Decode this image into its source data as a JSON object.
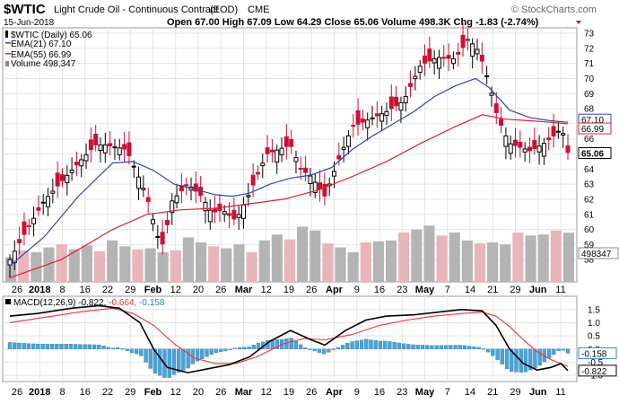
{
  "header": {
    "symbol": "$WTIC",
    "name": "Light Crude Oil - Continuous Contract",
    "exchange": "CME",
    "source": "(EOD)",
    "date": "15-Jun-2018",
    "quote": "Open 67.00  High 67.09  Low 64.29  Close 65.06  Volume 498.3K  Chg -1.83 (-2.74%)",
    "watermark": "© StockCharts.com"
  },
  "colors": {
    "up": "#000000",
    "down": "#cc1133",
    "ema21": "#3344aa",
    "ema55": "#dd2233",
    "volume": "#b4b4b4",
    "volume_down": "#e8b5bb",
    "macd": "#000000",
    "signal": "#ee3333",
    "histogram": "#4aa3d8",
    "grid": "#e4e4e4",
    "badge": "#3344aa"
  },
  "price_panel": {
    "legend": [
      "$WTIC (Daily) 65.06",
      "EMA(21) 67.10",
      "EMA(55) 66.99",
      "Volume 498,347"
    ],
    "price_badges": [
      "67.10",
      "66.99",
      "65.06"
    ],
    "volume_badge": "498347"
  },
  "macd_panel": {
    "legend_prefix": "MACD(12,26,9) -0.822, ",
    "legend_signal": "-0.664, ",
    "legend_hist": "-0.158",
    "badges": [
      "-0.158",
      "-0.822"
    ]
  },
  "x_axis_labels": [
    "26",
    "2018",
    "8",
    "16",
    "22",
    "29",
    "Feb",
    "12",
    "20",
    "26",
    "Mar",
    "12",
    "19",
    "26",
    "Apr",
    "9",
    "16",
    "23",
    "May",
    "7",
    "14",
    "21",
    "29",
    "Jun",
    "11"
  ],
  "chart_data": [
    {
      "type": "candlestick",
      "title": "$WTIC Light Crude Oil - Continuous Contract (EOD) CME",
      "y_range": [
        57,
        73
      ],
      "y_ticks": [
        58,
        59,
        60,
        61,
        62,
        63,
        64,
        65,
        66,
        67,
        68,
        69,
        70,
        71,
        72,
        73
      ],
      "x_range": [
        "2017-12-26",
        "2018-06-15"
      ],
      "series": [
        {
          "name": "$WTIC (Daily)",
          "style": "candles",
          "closes": [
            [
              0,
              58.0
            ],
            [
              4,
              59.6
            ],
            [
              10,
              61.9
            ],
            [
              20,
              64.4
            ],
            [
              25,
              65.6
            ],
            [
              28,
              65.6
            ],
            [
              34,
              65.3
            ],
            [
              37,
              63.8
            ],
            [
              40,
              62.2
            ],
            [
              43,
              59.6
            ],
            [
              45,
              58.9
            ],
            [
              47,
              61.8
            ],
            [
              52,
              63.0
            ],
            [
              56,
              62.2
            ],
            [
              59,
              61.1
            ],
            [
              62,
              61.3
            ],
            [
              66,
              60.6
            ],
            [
              70,
              62.4
            ],
            [
              75,
              65.0
            ],
            [
              82,
              65.6
            ],
            [
              85,
              64.0
            ],
            [
              88,
              63.5
            ],
            [
              92,
              62.2
            ],
            [
              96,
              64.6
            ],
            [
              100,
              66.8
            ],
            [
              106,
              67.4
            ],
            [
              110,
              67.8
            ],
            [
              115,
              68.5
            ],
            [
              120,
              70.9
            ],
            [
              125,
              71.4
            ],
            [
              130,
              71.3
            ],
            [
              134,
              72.6
            ],
            [
              137,
              71.8
            ],
            [
              140,
              69.7
            ],
            [
              142,
              67.8
            ],
            [
              144,
              66.6
            ],
            [
              146,
              65.7
            ],
            [
              152,
              65.2
            ],
            [
              156,
              65.7
            ],
            [
              160,
              66.4
            ],
            [
              161,
              66.9
            ],
            [
              163,
              65.1
            ]
          ]
        },
        {
          "name": "EMA(21)",
          "style": "line",
          "points": [
            [
              0,
              57.6
            ],
            [
              10,
              59.5
            ],
            [
              20,
              62.2
            ],
            [
              30,
              64.4
            ],
            [
              36,
              64.5
            ],
            [
              42,
              63.9
            ],
            [
              48,
              63.0
            ],
            [
              55,
              62.6
            ],
            [
              60,
              62.3
            ],
            [
              65,
              62.2
            ],
            [
              70,
              62.4
            ],
            [
              76,
              63.0
            ],
            [
              82,
              63.4
            ],
            [
              88,
              63.6
            ],
            [
              94,
              64.1
            ],
            [
              100,
              65.3
            ],
            [
              106,
              66.2
            ],
            [
              112,
              67.0
            ],
            [
              118,
              67.8
            ],
            [
              124,
              68.8
            ],
            [
              130,
              69.5
            ],
            [
              136,
              70.0
            ],
            [
              140,
              69.4
            ],
            [
              146,
              67.9
            ],
            [
              152,
              67.4
            ],
            [
              158,
              67.2
            ],
            [
              163,
              67.1
            ]
          ]
        },
        {
          "name": "EMA(55)",
          "style": "line",
          "points": [
            [
              0,
              56.8
            ],
            [
              15,
              58.0
            ],
            [
              30,
              60.0
            ],
            [
              40,
              61.0
            ],
            [
              50,
              61.3
            ],
            [
              60,
              61.4
            ],
            [
              70,
              61.7
            ],
            [
              80,
              62.0
            ],
            [
              90,
              62.6
            ],
            [
              100,
              63.5
            ],
            [
              110,
              64.5
            ],
            [
              120,
              65.7
            ],
            [
              130,
              66.8
            ],
            [
              138,
              67.6
            ],
            [
              145,
              67.3
            ],
            [
              152,
              67.2
            ],
            [
              158,
              67.1
            ],
            [
              163,
              67.0
            ]
          ]
        }
      ]
    },
    {
      "type": "bar",
      "title": "Volume",
      "y_range": [
        0,
        1000000
      ],
      "values": [
        250000,
        320000,
        300000,
        350000,
        380000,
        330000,
        370000,
        310000,
        420000,
        360000,
        330000,
        340000,
        300000,
        320000,
        450000,
        400000,
        360000,
        340000,
        380000,
        300000,
        420000,
        480000,
        430000,
        560000,
        520000,
        390000,
        350000,
        300000,
        400000,
        410000,
        420000,
        500000,
        530000,
        570000,
        470000,
        500000,
        420000,
        390000,
        400000,
        380000,
        500000,
        470000,
        480000,
        520000,
        498347
      ]
    },
    {
      "type": "line",
      "title": "MACD(12,26,9)",
      "y_range": [
        -1.1,
        1.8
      ],
      "y_ticks": [
        -1.0,
        -0.5,
        0.0,
        0.5,
        1.0,
        1.5
      ],
      "series": [
        {
          "name": "MACD",
          "points": [
            [
              0,
              1.25
            ],
            [
              8,
              1.35
            ],
            [
              18,
              1.55
            ],
            [
              26,
              1.65
            ],
            [
              32,
              1.55
            ],
            [
              38,
              1.0
            ],
            [
              42,
              0.0
            ],
            [
              46,
              -0.7
            ],
            [
              52,
              -0.9
            ],
            [
              58,
              -0.75
            ],
            [
              64,
              -0.6
            ],
            [
              70,
              -0.3
            ],
            [
              76,
              0.3
            ],
            [
              82,
              0.7
            ],
            [
              88,
              0.35
            ],
            [
              92,
              0.15
            ],
            [
              98,
              0.7
            ],
            [
              104,
              1.1
            ],
            [
              110,
              1.25
            ],
            [
              118,
              1.3
            ],
            [
              125,
              1.4
            ],
            [
              132,
              1.5
            ],
            [
              138,
              1.45
            ],
            [
              142,
              0.9
            ],
            [
              146,
              0.0
            ],
            [
              150,
              -0.55
            ],
            [
              154,
              -0.8
            ],
            [
              158,
              -0.7
            ],
            [
              161,
              -0.55
            ],
            [
              163,
              -0.82
            ]
          ]
        },
        {
          "name": "Signal",
          "points": [
            [
              0,
              1.0
            ],
            [
              10,
              1.2
            ],
            [
              20,
              1.4
            ],
            [
              30,
              1.55
            ],
            [
              36,
              1.35
            ],
            [
              42,
              0.9
            ],
            [
              48,
              0.2
            ],
            [
              54,
              -0.35
            ],
            [
              60,
              -0.55
            ],
            [
              66,
              -0.55
            ],
            [
              72,
              -0.3
            ],
            [
              80,
              0.2
            ],
            [
              86,
              0.4
            ],
            [
              92,
              0.35
            ],
            [
              100,
              0.55
            ],
            [
              108,
              0.9
            ],
            [
              116,
              1.1
            ],
            [
              124,
              1.25
            ],
            [
              132,
              1.35
            ],
            [
              138,
              1.4
            ],
            [
              142,
              1.25
            ],
            [
              146,
              0.85
            ],
            [
              150,
              0.35
            ],
            [
              154,
              -0.1
            ],
            [
              158,
              -0.4
            ],
            [
              163,
              -0.66
            ]
          ]
        }
      ]
    }
  ]
}
